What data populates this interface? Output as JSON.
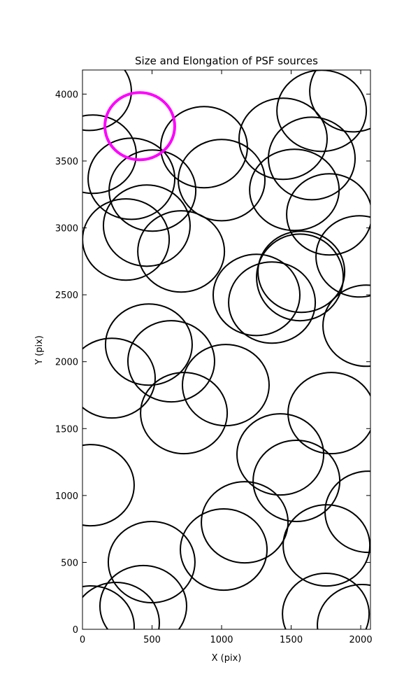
{
  "chart_data": {
    "type": "ellipse",
    "title": "Size and Elongation of PSF sources",
    "xlabel": "X (pix)",
    "ylabel": "Y (pix)",
    "xlim": [
      0,
      2070
    ],
    "ylim": [
      0,
      4180
    ],
    "xticks": [
      0,
      500,
      1000,
      1500,
      2000
    ],
    "yticks": [
      0,
      500,
      1000,
      1500,
      2000,
      2500,
      3000,
      3500,
      4000
    ],
    "grid": false,
    "series": [
      {
        "color": "#000000",
        "x": [
          50,
          75,
          352,
          503,
          462,
          312,
          709,
          874,
          1000,
          1442,
          1719,
          1945,
          1648,
          1523,
          1774,
          1990,
          1573,
          1563,
          1251,
          1362,
          2040,
          477,
          638,
          211,
          1030,
          729,
          1789,
          60,
          1422,
          1538,
          2055,
          1166,
          1015,
          1754,
          497,
          437,
          241,
          60,
          1749,
          2010
        ],
        "y": [
          4021,
          3551,
          3367,
          3279,
          3017,
          2913,
          2824,
          3603,
          3357,
          3666,
          3875,
          4021,
          3519,
          3284,
          3101,
          2787,
          2672,
          2630,
          2499,
          2442,
          2269,
          2128,
          2003,
          1877,
          1825,
          1616,
          1616,
          1077,
          1307,
          1109,
          878,
          800,
          596,
          627,
          502,
          173,
          47,
          21,
          115,
          31
        ],
        "widths": [
          603,
          623,
          623,
          623,
          623,
          623,
          623,
          623,
          623,
          633,
          643,
          623,
          623,
          643,
          613,
          623,
          623,
          623,
          623,
          623,
          623,
          623,
          623,
          623,
          623,
          623,
          623,
          623,
          623,
          623,
          623,
          623,
          623,
          623,
          623,
          623,
          623,
          623,
          623,
          643
        ],
        "heights": [
          586,
          586,
          607,
          607,
          607,
          607,
          607,
          607,
          607,
          607,
          607,
          607,
          617,
          607,
          607,
          607,
          607,
          648,
          607,
          607,
          607,
          607,
          607,
          596,
          607,
          607,
          607,
          607,
          607,
          607,
          607,
          607,
          607,
          607,
          607,
          607,
          607,
          607,
          607,
          607
        ]
      },
      {
        "color": "#ff00ff",
        "x": [
          412
        ],
        "y": [
          3760
        ],
        "widths": [
          502
        ],
        "heights": [
          502
        ]
      }
    ]
  }
}
